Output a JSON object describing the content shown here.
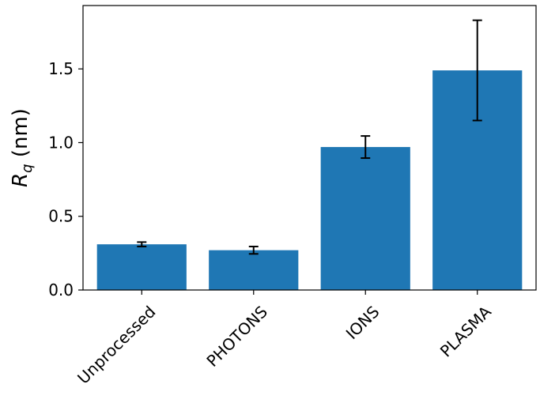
{
  "chart_data": {
    "type": "bar",
    "title": "",
    "xlabel": "",
    "ylabel": {
      "symbol": "R",
      "subscript": "q",
      "unit": " (nm)"
    },
    "categories": [
      "Unprocessed",
      "PHOTONS",
      "IONS",
      "PLASMA"
    ],
    "values": [
      0.31,
      0.27,
      0.97,
      1.49
    ],
    "errors": [
      0.015,
      0.025,
      0.075,
      0.34
    ],
    "ylim": [
      0,
      1.93
    ],
    "yticks": [
      0.0,
      0.5,
      1.0,
      1.5
    ],
    "ytick_labels": [
      "0.0",
      "0.5",
      "1.0",
      "1.5"
    ],
    "bar_color": "#1f77b4",
    "error_color": "#000000",
    "grid": false,
    "legend": "none"
  }
}
